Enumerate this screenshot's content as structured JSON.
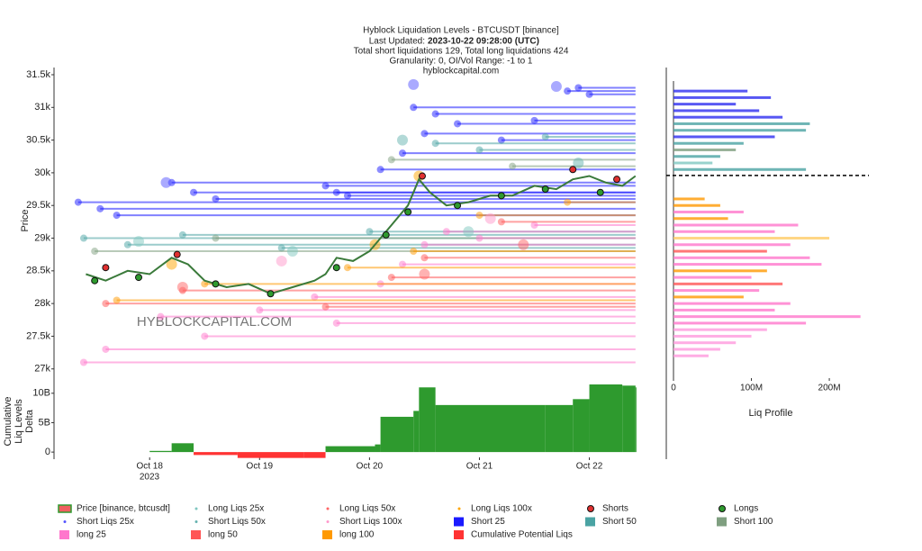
{
  "chart_data": {
    "type": "liquidation-levels",
    "title": "Hyblock Liquidation Levels - BTCUSDT [binance]",
    "updated_label": "Last Updated:",
    "updated_value": "2023-10-22 09:28:00 (UTC)",
    "subtitle": "Total short liquidations 129, Total long liquidations 424",
    "settings_line": "Granularity: 0, OI/Vol Range: -1 to 1",
    "source": "hyblockcapital.com",
    "watermark": "HYBLOCKCAPITAL.COM",
    "ylabel": "Price",
    "xlim": [
      17.13,
      22.7
    ],
    "xticks": [
      {
        "value": 18,
        "label": "Oct 18"
      },
      {
        "value": 19,
        "label": "Oct 19"
      },
      {
        "value": 20,
        "label": "Oct 20"
      },
      {
        "value": 21,
        "label": "Oct 21"
      },
      {
        "value": 22,
        "label": "Oct 22"
      }
    ],
    "x_year": "2023",
    "ylim": [
      26790,
      31610
    ],
    "yticks": [
      {
        "value": 27000,
        "label": "27k"
      },
      {
        "value": 27500,
        "label": "27.5k"
      },
      {
        "value": 28000,
        "label": "28k"
      },
      {
        "value": 28500,
        "label": "28.5k"
      },
      {
        "value": 29000,
        "label": "29k"
      },
      {
        "value": 29500,
        "label": "29.5k"
      },
      {
        "value": 30000,
        "label": "30k"
      },
      {
        "value": 30500,
        "label": "30.5k"
      },
      {
        "value": 31000,
        "label": "31k"
      },
      {
        "value": 31500,
        "label": "31.5k"
      }
    ],
    "delta_ylabel": [
      "Cumulative",
      "Liq Levels",
      "Delta"
    ],
    "delta_ylim": [
      -900000000,
      11500000000
    ],
    "delta_yticks": [
      0,
      {
        "value": 5000000000,
        "label": "5B"
      },
      {
        "value": 10000000000,
        "label": "10B"
      }
    ],
    "positive_color": "#2e9a2e",
    "series": [
      {
        "name": "Price [binance, btcusdt]",
        "kind": "price",
        "color": "#3a7a3a",
        "x": [
          17.42,
          17.6,
          17.8,
          18.0,
          18.2,
          18.35,
          18.5,
          18.7,
          18.9,
          19.1,
          19.3,
          19.5,
          19.6,
          19.7,
          19.85,
          20.0,
          20.1,
          20.2,
          20.35,
          20.45,
          20.55,
          20.7,
          20.9,
          21.1,
          21.3,
          21.5,
          21.7,
          21.85,
          22.0,
          22.15,
          22.3,
          22.42
        ],
        "values": [
          28450,
          28350,
          28500,
          28450,
          28700,
          28600,
          28350,
          28250,
          28300,
          28150,
          28250,
          28350,
          28450,
          28700,
          28650,
          28800,
          29000,
          29200,
          29500,
          29900,
          29700,
          29500,
          29550,
          29650,
          29650,
          29800,
          29750,
          29900,
          29950,
          29850,
          29800,
          29950
        ]
      },
      {
        "name": "Long Liqs 25x",
        "kind": "dot",
        "color": "#7fc7c0",
        "x": [
          17.9,
          19.3,
          20.9
        ],
        "values": [
          28950,
          28800,
          29100
        ]
      },
      {
        "name": "Long Liqs 50x",
        "kind": "dot",
        "color": "#ff6666",
        "x": [
          18.3,
          20.5,
          21.4
        ],
        "values": [
          28250,
          28450,
          28900
        ]
      },
      {
        "name": "Long Liqs 100x",
        "kind": "dot",
        "color": "#ffa500",
        "x": [
          18.2,
          20.05,
          20.45
        ],
        "values": [
          28600,
          28900,
          29950
        ]
      },
      {
        "name": "Shorts",
        "kind": "marker",
        "color": "#e03030",
        "x": [
          17.6,
          18.25,
          20.48,
          21.85,
          22.25
        ],
        "values": [
          28550,
          28750,
          29950,
          30050,
          29900
        ]
      },
      {
        "name": "Longs",
        "kind": "marker",
        "color": "#2e9a2e",
        "x": [
          17.5,
          17.9,
          18.6,
          19.1,
          19.7,
          20.15,
          20.35,
          20.8,
          21.2,
          21.6,
          22.1
        ],
        "values": [
          28350,
          28400,
          28300,
          28150,
          28550,
          29050,
          29400,
          29500,
          29650,
          29750,
          29700
        ]
      },
      {
        "name": "Short Liqs 25x",
        "kind": "dot",
        "color": "#5555ff",
        "x": [
          18.15,
          20.4,
          21.7
        ],
        "values": [
          29850,
          31350,
          31320
        ]
      },
      {
        "name": "Short Liqs 50x",
        "kind": "dot",
        "color": "#66b3b0",
        "x": [
          20.3,
          21.9
        ],
        "values": [
          30500,
          30150
        ]
      },
      {
        "name": "Short Liqs 100x",
        "kind": "dot",
        "color": "#ff99cc",
        "x": [
          19.2,
          21.1
        ],
        "values": [
          28650,
          29300
        ]
      },
      {
        "name": "Short 25",
        "kind": "level",
        "color": "#1a1aff",
        "x": [
          17.35,
          17.55,
          17.7,
          18.2,
          18.4,
          18.6,
          19.6,
          19.7,
          19.8,
          20.1,
          20.3,
          20.5,
          20.4,
          21.8,
          21.9,
          22.0,
          20.6,
          20.8,
          21.2,
          21.5
        ],
        "values": [
          29550,
          29450,
          29350,
          29850,
          29700,
          29600,
          29800,
          29700,
          29650,
          30050,
          30300,
          30600,
          31000,
          31250,
          31300,
          31200,
          30900,
          30750,
          30500,
          30800
        ]
      },
      {
        "name": "Short 50",
        "kind": "level",
        "color": "#4aa3a3",
        "x": [
          17.4,
          17.8,
          18.3,
          19.2,
          20.0,
          20.6,
          21.0,
          21.6
        ],
        "values": [
          29000,
          28900,
          29050,
          28850,
          29100,
          30450,
          30350,
          30550
        ]
      },
      {
        "name": "Short 100",
        "kind": "level",
        "color": "#7f9f80",
        "x": [
          17.5,
          18.6,
          20.2,
          21.3
        ],
        "values": [
          28800,
          29000,
          30200,
          30100
        ]
      },
      {
        "name": "long 25",
        "kind": "level",
        "color": "#ff77cc",
        "x": [
          17.4,
          17.6,
          18.1,
          18.5,
          19.0,
          19.5,
          19.7,
          20.1,
          20.3,
          20.5,
          20.7,
          21.0,
          21.5
        ],
        "values": [
          27100,
          27300,
          27800,
          27500,
          27900,
          28100,
          27700,
          28300,
          28600,
          28900,
          29100,
          29000,
          29200
        ]
      },
      {
        "name": "long 50",
        "kind": "level",
        "color": "#ff5555",
        "x": [
          17.6,
          18.3,
          19.6,
          20.2,
          20.5,
          21.2
        ],
        "values": [
          28000,
          28200,
          27950,
          28400,
          28700,
          29250
        ]
      },
      {
        "name": "long 100",
        "kind": "level",
        "color": "#ff9900",
        "x": [
          17.7,
          18.5,
          19.8,
          20.4,
          21.0,
          21.8
        ],
        "values": [
          28050,
          28300,
          28550,
          28800,
          29350,
          29550
        ]
      },
      {
        "name": "Cumulative Potential Liqs",
        "kind": "delta",
        "color": "#ff3333",
        "x": [
          17.42,
          18.0,
          18.2,
          18.4,
          18.8,
          19.4,
          19.6,
          20.05,
          20.1,
          20.4,
          20.45,
          20.6,
          21.6,
          21.85,
          22.0,
          22.3,
          22.42
        ],
        "values": [
          0,
          200000000,
          1500000000,
          -500000000,
          -1000000000,
          -1000000000,
          1000000000,
          1300000000,
          6000000000,
          7000000000,
          11000000000,
          8000000000,
          8000000000,
          9000000000,
          11500000000,
          11300000000,
          11000000000
        ]
      }
    ],
    "profile": {
      "xlabel": "Liq Profile",
      "xlim": [
        0,
        245000000
      ],
      "xticks": [
        0,
        {
          "value": 100000000,
          "label": "100M"
        },
        {
          "value": 200000000,
          "label": "200M"
        }
      ],
      "current_price": 29960,
      "prices": [
        31250,
        31150,
        31050,
        30950,
        30850,
        30750,
        30650,
        30550,
        30450,
        30350,
        30250,
        30150,
        30050,
        29600,
        29500,
        29400,
        29300,
        29200,
        29100,
        29000,
        28900,
        28800,
        28700,
        28600,
        28500,
        28400,
        28300,
        28200,
        28100,
        28000,
        27900,
        27800,
        27700,
        27600,
        27500,
        27400,
        27300,
        27200
      ],
      "values": [
        95000000,
        125000000,
        80000000,
        110000000,
        140000000,
        175000000,
        170000000,
        130000000,
        90000000,
        80000000,
        60000000,
        50000000,
        170000000,
        40000000,
        60000000,
        90000000,
        70000000,
        160000000,
        130000000,
        200000000,
        150000000,
        120000000,
        175000000,
        190000000,
        120000000,
        100000000,
        140000000,
        110000000,
        90000000,
        150000000,
        130000000,
        240000000,
        170000000,
        120000000,
        100000000,
        80000000,
        60000000,
        45000000
      ],
      "colors": [
        "#2d2df0",
        "#2d2df0",
        "#2d2df0",
        "#2d2df0",
        "#2d2df0",
        "#4aa3a3",
        "#4aa3a3",
        "#2d2df0",
        "#4aa3a3",
        "#7f9f80",
        "#4aa3a3",
        "#7fc7c0",
        "#4aa3a3",
        "#ff9900",
        "#ff9900",
        "#ff77cc",
        "#ff9900",
        "#ff77cc",
        "#ff77cc",
        "#ffcc66",
        "#ff77cc",
        "#ff5555",
        "#ff77cc",
        "#ff77cc",
        "#ff9900",
        "#ff77cc",
        "#ff5555",
        "#ff77cc",
        "#ff9900",
        "#ff77cc",
        "#ff77cc",
        "#ff77cc",
        "#ff77cc",
        "#ff99dd",
        "#ff99dd",
        "#ff99dd",
        "#ff99dd",
        "#ff99dd"
      ]
    }
  }
}
